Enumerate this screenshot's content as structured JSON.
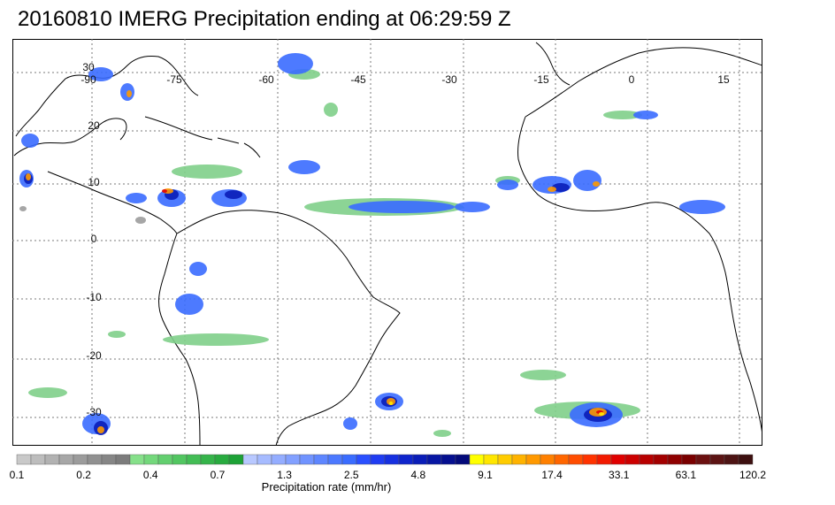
{
  "title": "20160810 IMERG Precipitation ending at 06:29:59 Z",
  "map": {
    "lon_labels": [
      "-90",
      "-75",
      "-60",
      "-45",
      "-30",
      "-15",
      "0",
      "15"
    ],
    "lat_labels": [
      "30",
      "20",
      "10",
      "0",
      "-10",
      "-20",
      "-30"
    ],
    "gridline_color": "#7a7a7a",
    "coastline_color": "#000000"
  },
  "colorbar": {
    "title": "Precipitation rate (mm/hr)",
    "tick_labels": [
      "0.1",
      "0.2",
      "0.4",
      "0.7",
      "1.3",
      "2.5",
      "4.8",
      "9.1",
      "17.4",
      "33.1",
      "63.1",
      "120.2"
    ],
    "colors": [
      "#c9c9c9",
      "#bdbdbd",
      "#b2b2b2",
      "#a7a7a7",
      "#9c9c9c",
      "#919191",
      "#868686",
      "#7c7c7c",
      "#86e08a",
      "#74d87c",
      "#63cf6f",
      "#52c661",
      "#43bd55",
      "#35b44a",
      "#28ab3f",
      "#1da236",
      "#b8c8ff",
      "#a6bbff",
      "#94adff",
      "#82a0ff",
      "#7093ff",
      "#5e86ff",
      "#4c79ff",
      "#3a6cff",
      "#2a4fff",
      "#1f3cf2",
      "#1630e0",
      "#0f25cc",
      "#0a1db8",
      "#0716a3",
      "#050f8f",
      "#030a7a",
      "#ffff00",
      "#ffe600",
      "#ffcc00",
      "#ffb300",
      "#ff9900",
      "#ff8000",
      "#ff6600",
      "#ff4d00",
      "#ff3300",
      "#f21a00",
      "#e00000",
      "#cc0000",
      "#b80000",
      "#a30000",
      "#8f0000",
      "#7a0000",
      "#6b1010",
      "#5c1414",
      "#4d1414",
      "#3d1010"
    ]
  },
  "precip_palette": {
    "light": "#7fcf8a",
    "medium": "#3a6cff",
    "heavy": "#0a1db8",
    "intense": "#ff9900",
    "extreme": "#e00000",
    "yellow": "#ffee00",
    "gray": "#9c9c9c"
  }
}
